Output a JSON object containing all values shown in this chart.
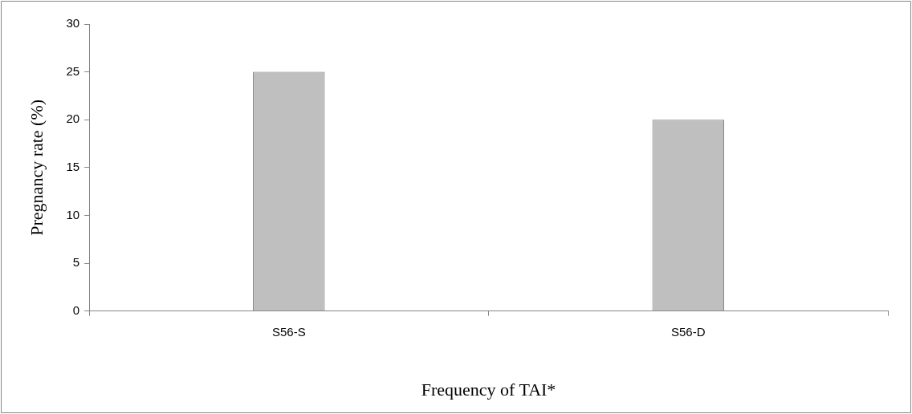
{
  "chart_data": {
    "type": "bar",
    "categories": [
      "S56-S",
      "S56-D"
    ],
    "values": [
      25,
      20
    ],
    "color": "#bfbfbf",
    "xlabel": "Frequency of TAI*",
    "ylabel": "Pregnancy rate (%)",
    "ylim": [
      0,
      30
    ],
    "yticks": [
      0,
      5,
      10,
      15,
      20,
      25,
      30
    ],
    "grid": false,
    "legend": false
  }
}
